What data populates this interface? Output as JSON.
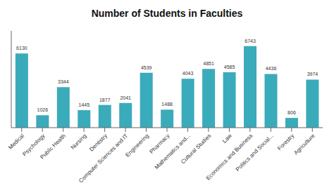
{
  "chart_data": {
    "type": "bar",
    "title": "Number of Students in Faculties",
    "categories": [
      "Medical",
      "Psychology",
      "Public Health",
      "Nursing",
      "Dentistry",
      "Computer Sciences and IT",
      "Engineering",
      "Pharmacy",
      "Mathematics and...",
      "Cultural Studies",
      "Law",
      "Economics and Business",
      "Politics and Social...",
      "Forestry",
      "Agriculture"
    ],
    "values": [
      6130,
      1026,
      3344,
      1445,
      1877,
      2041,
      4539,
      1488,
      4043,
      4851,
      4585,
      6743,
      4436,
      806,
      3974
    ],
    "color": "#3aabba",
    "ylim": [
      0,
      8000
    ],
    "data_labels": true,
    "tick_labels": "x",
    "grid": false
  }
}
